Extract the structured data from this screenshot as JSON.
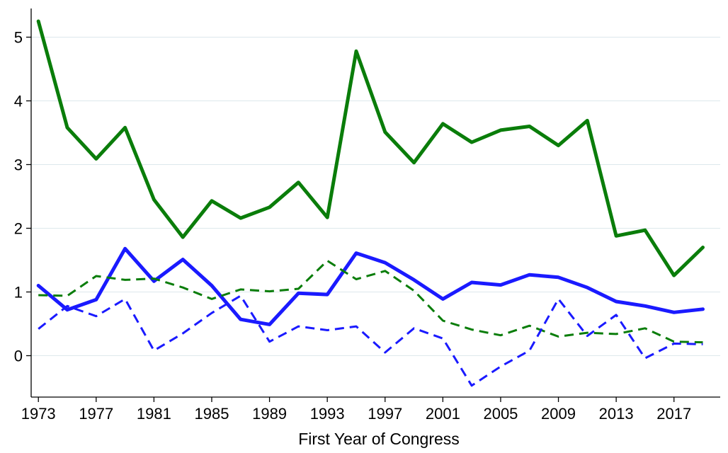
{
  "chart_data": {
    "type": "line",
    "title": "",
    "xlabel": "First Year of Congress",
    "ylabel": "",
    "xlim": [
      1972.5,
      2020.2
    ],
    "ylim": [
      -0.65,
      5.45
    ],
    "xticks": [
      1973,
      1977,
      1981,
      1985,
      1989,
      1993,
      1997,
      2001,
      2005,
      2009,
      2013,
      2017
    ],
    "yticks": [
      0,
      1,
      2,
      3,
      4,
      5
    ],
    "grid": "horizontal",
    "legend": "none",
    "x": [
      1973,
      1975,
      1977,
      1979,
      1981,
      1983,
      1985,
      1987,
      1989,
      1991,
      1993,
      1995,
      1997,
      1999,
      2001,
      2003,
      2005,
      2007,
      2009,
      2011,
      2013,
      2015,
      2017,
      2019
    ],
    "series": [
      {
        "color": "#0a7d0a",
        "style": "solid",
        "values": [
          5.25,
          3.58,
          3.09,
          3.58,
          2.45,
          1.86,
          2.43,
          2.16,
          2.33,
          2.72,
          2.17,
          4.78,
          3.51,
          3.03,
          3.64,
          3.35,
          3.54,
          3.6,
          3.3,
          3.69,
          1.88,
          1.97,
          1.26,
          1.7
        ]
      },
      {
        "color": "#1a1aff",
        "style": "solid",
        "values": [
          1.1,
          0.72,
          0.88,
          1.68,
          1.17,
          1.51,
          1.1,
          0.57,
          0.49,
          0.98,
          0.96,
          1.61,
          1.46,
          1.19,
          0.89,
          1.15,
          1.11,
          1.27,
          1.23,
          1.07,
          0.85,
          0.78,
          0.68,
          0.73
        ]
      },
      {
        "color": "#0a7d0a",
        "style": "dashed",
        "values": [
          0.95,
          0.94,
          1.25,
          1.19,
          1.21,
          1.07,
          0.89,
          1.04,
          1.01,
          1.05,
          1.49,
          1.2,
          1.33,
          1.02,
          0.55,
          0.41,
          0.32,
          0.47,
          0.3,
          0.36,
          0.34,
          0.43,
          0.22,
          0.21
        ]
      },
      {
        "color": "#1a1aff",
        "style": "dashed",
        "values": [
          0.42,
          0.78,
          0.62,
          0.89,
          0.08,
          0.35,
          0.67,
          0.94,
          0.22,
          0.46,
          0.4,
          0.46,
          0.05,
          0.43,
          0.27,
          -0.47,
          -0.17,
          0.08,
          0.89,
          0.31,
          0.64,
          -0.04,
          0.19,
          0.18
        ]
      }
    ]
  }
}
